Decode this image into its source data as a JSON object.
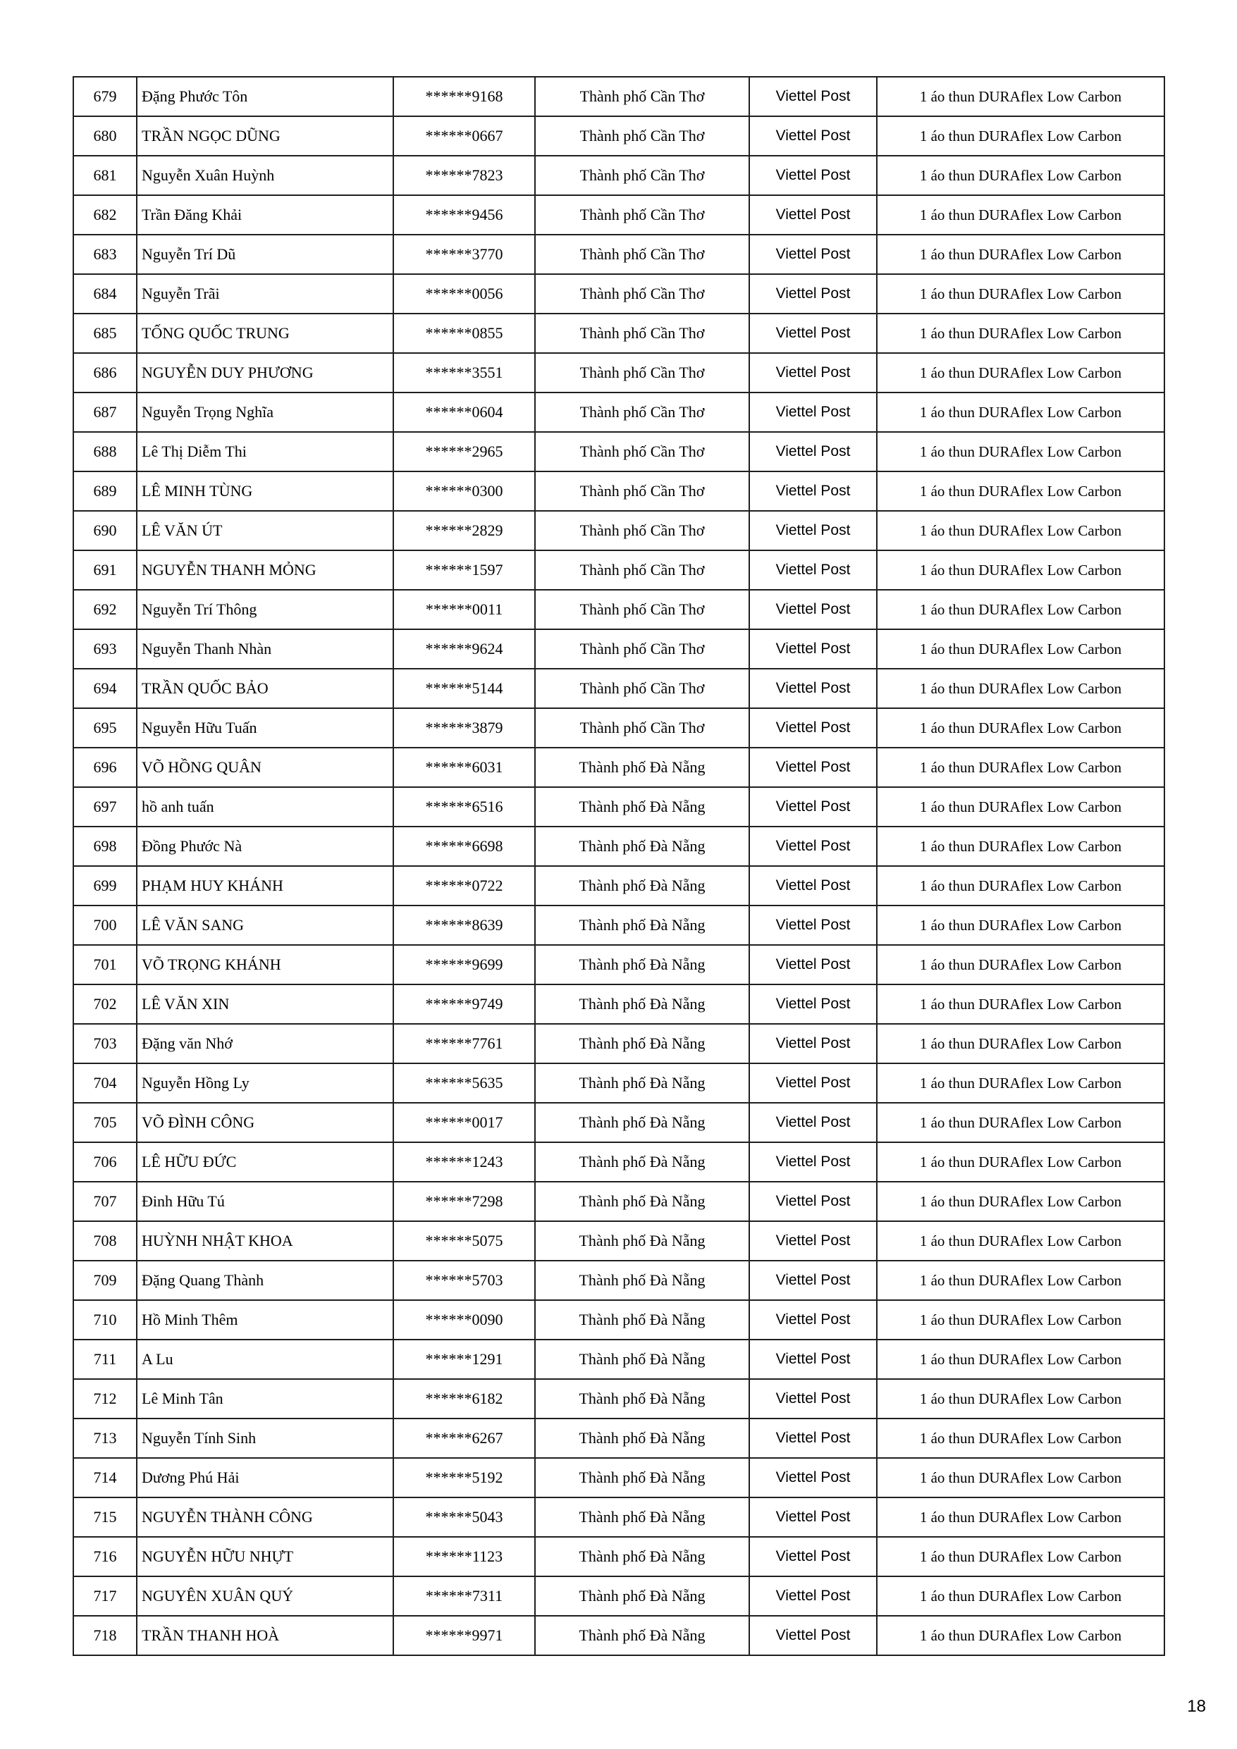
{
  "page": {
    "number": "18"
  },
  "table": {
    "columns": [
      "index",
      "name",
      "phone",
      "city",
      "carrier",
      "prize"
    ],
    "rows": [
      {
        "index": "679",
        "name": "Đặng Phước Tôn",
        "phone": "******9168",
        "city": "Thành phố Cần Thơ",
        "carrier": "Viettel Post",
        "prize": "1 áo thun DURAflex Low Carbon"
      },
      {
        "index": "680",
        "name": "TRẦN NGỌC DŨNG",
        "phone": "******0667",
        "city": "Thành phố Cần Thơ",
        "carrier": "Viettel Post",
        "prize": "1 áo thun DURAflex Low Carbon"
      },
      {
        "index": "681",
        "name": "Nguyễn Xuân Huỳnh",
        "phone": "******7823",
        "city": "Thành phố Cần Thơ",
        "carrier": "Viettel Post",
        "prize": "1 áo thun DURAflex Low Carbon"
      },
      {
        "index": "682",
        "name": "Trần Đăng Khải",
        "phone": "******9456",
        "city": "Thành phố Cần Thơ",
        "carrier": "Viettel Post",
        "prize": "1 áo thun DURAflex Low Carbon"
      },
      {
        "index": "683",
        "name": "Nguyễn Trí Dũ",
        "phone": "******3770",
        "city": "Thành phố Cần Thơ",
        "carrier": "Viettel Post",
        "prize": "1 áo thun DURAflex Low Carbon"
      },
      {
        "index": "684",
        "name": "Nguyễn Trãi",
        "phone": "******0056",
        "city": "Thành phố Cần Thơ",
        "carrier": "Viettel Post",
        "prize": "1 áo thun DURAflex Low Carbon"
      },
      {
        "index": "685",
        "name": "TỐNG QUỐC TRUNG",
        "phone": "******0855",
        "city": "Thành phố Cần Thơ",
        "carrier": "Viettel Post",
        "prize": "1 áo thun DURAflex Low Carbon"
      },
      {
        "index": "686",
        "name": "NGUYỄN DUY PHƯƠNG",
        "phone": "******3551",
        "city": "Thành phố Cần Thơ",
        "carrier": "Viettel Post",
        "prize": "1 áo thun DURAflex Low Carbon"
      },
      {
        "index": "687",
        "name": "Nguyễn Trọng Nghĩa",
        "phone": "******0604",
        "city": "Thành phố Cần Thơ",
        "carrier": "Viettel Post",
        "prize": "1 áo thun DURAflex Low Carbon"
      },
      {
        "index": "688",
        "name": "Lê Thị Diễm Thi",
        "phone": "******2965",
        "city": "Thành phố Cần Thơ",
        "carrier": "Viettel Post",
        "prize": "1 áo thun DURAflex Low Carbon"
      },
      {
        "index": "689",
        "name": "LÊ MINH TÙNG",
        "phone": "******0300",
        "city": "Thành phố Cần Thơ",
        "carrier": "Viettel Post",
        "prize": "1 áo thun DURAflex Low Carbon"
      },
      {
        "index": "690",
        "name": "LÊ VĂN ÚT",
        "phone": "******2829",
        "city": "Thành phố Cần Thơ",
        "carrier": "Viettel Post",
        "prize": "1 áo thun DURAflex Low Carbon"
      },
      {
        "index": "691",
        "name": "NGUYỄN THANH MỎNG",
        "phone": "******1597",
        "city": "Thành phố Cần Thơ",
        "carrier": "Viettel Post",
        "prize": "1 áo thun DURAflex Low Carbon"
      },
      {
        "index": "692",
        "name": "Nguyễn Trí Thông",
        "phone": "******0011",
        "city": "Thành phố Cần Thơ",
        "carrier": "Viettel Post",
        "prize": "1 áo thun DURAflex Low Carbon"
      },
      {
        "index": "693",
        "name": "Nguyễn Thanh Nhàn",
        "phone": "******9624",
        "city": "Thành phố Cần Thơ",
        "carrier": "Viettel Post",
        "prize": "1 áo thun DURAflex Low Carbon"
      },
      {
        "index": "694",
        "name": "TRẦN QUỐC BẢO",
        "phone": "******5144",
        "city": "Thành phố Cần Thơ",
        "carrier": "Viettel Post",
        "prize": "1 áo thun DURAflex Low Carbon"
      },
      {
        "index": "695",
        "name": "Nguyễn Hữu Tuấn",
        "phone": "******3879",
        "city": "Thành phố Cần Thơ",
        "carrier": "Viettel Post",
        "prize": "1 áo thun DURAflex Low Carbon"
      },
      {
        "index": "696",
        "name": "VÕ HỒNG QUÂN",
        "phone": "******6031",
        "city": "Thành phố Đà Nẵng",
        "carrier": "Viettel Post",
        "prize": "1 áo thun DURAflex Low Carbon"
      },
      {
        "index": "697",
        "name": "hồ anh tuấn",
        "phone": "******6516",
        "city": "Thành phố Đà Nẵng",
        "carrier": "Viettel Post",
        "prize": "1 áo thun DURAflex Low Carbon"
      },
      {
        "index": "698",
        "name": "Đồng Phước Nà",
        "phone": "******6698",
        "city": "Thành phố Đà Nẵng",
        "carrier": "Viettel Post",
        "prize": "1 áo thun DURAflex Low Carbon"
      },
      {
        "index": "699",
        "name": "PHẠM HUY KHÁNH",
        "phone": "******0722",
        "city": "Thành phố Đà Nẵng",
        "carrier": "Viettel Post",
        "prize": "1 áo thun DURAflex Low Carbon"
      },
      {
        "index": "700",
        "name": "LÊ VĂN SANG",
        "phone": "******8639",
        "city": "Thành phố Đà Nẵng",
        "carrier": "Viettel Post",
        "prize": "1 áo thun DURAflex Low Carbon"
      },
      {
        "index": "701",
        "name": "VÕ TRỌNG KHÁNH",
        "phone": "******9699",
        "city": "Thành phố Đà Nẵng",
        "carrier": "Viettel Post",
        "prize": "1 áo thun DURAflex Low Carbon"
      },
      {
        "index": "702",
        "name": "LÊ VĂN XIN",
        "phone": "******9749",
        "city": "Thành phố Đà Nẵng",
        "carrier": "Viettel Post",
        "prize": "1 áo thun DURAflex Low Carbon"
      },
      {
        "index": "703",
        "name": "Đặng văn Nhớ",
        "phone": "******7761",
        "city": "Thành phố Đà Nẵng",
        "carrier": "Viettel Post",
        "prize": "1 áo thun DURAflex Low Carbon"
      },
      {
        "index": "704",
        "name": "Nguyễn Hồng Ly",
        "phone": "******5635",
        "city": "Thành phố Đà Nẵng",
        "carrier": "Viettel Post",
        "prize": "1 áo thun DURAflex Low Carbon"
      },
      {
        "index": "705",
        "name": "VÕ ĐÌNH CÔNG",
        "phone": "******0017",
        "city": "Thành phố Đà Nẵng",
        "carrier": "Viettel Post",
        "prize": "1 áo thun DURAflex Low Carbon"
      },
      {
        "index": "706",
        "name": "LÊ HỮU ĐỨC",
        "phone": "******1243",
        "city": "Thành phố Đà Nẵng",
        "carrier": "Viettel Post",
        "prize": "1 áo thun DURAflex Low Carbon"
      },
      {
        "index": "707",
        "name": "Đinh Hữu Tú",
        "phone": "******7298",
        "city": "Thành phố Đà Nẵng",
        "carrier": "Viettel Post",
        "prize": "1 áo thun DURAflex Low Carbon"
      },
      {
        "index": "708",
        "name": "HUỲNH NHẬT KHOA",
        "phone": "******5075",
        "city": "Thành phố Đà Nẵng",
        "carrier": "Viettel Post",
        "prize": "1 áo thun DURAflex Low Carbon"
      },
      {
        "index": "709",
        "name": "Đặng Quang Thành",
        "phone": "******5703",
        "city": "Thành phố Đà Nẵng",
        "carrier": "Viettel Post",
        "prize": "1 áo thun DURAflex Low Carbon"
      },
      {
        "index": "710",
        "name": "Hồ Minh Thêm",
        "phone": "******0090",
        "city": "Thành phố Đà Nẵng",
        "carrier": "Viettel Post",
        "prize": "1 áo thun DURAflex Low Carbon"
      },
      {
        "index": "711",
        "name": "A Lu",
        "phone": "******1291",
        "city": "Thành phố Đà Nẵng",
        "carrier": "Viettel Post",
        "prize": "1 áo thun DURAflex Low Carbon"
      },
      {
        "index": "712",
        "name": "Lê Minh Tân",
        "phone": "******6182",
        "city": "Thành phố Đà Nẵng",
        "carrier": "Viettel Post",
        "prize": "1 áo thun DURAflex Low Carbon"
      },
      {
        "index": "713",
        "name": "Nguyễn Tính Sinh",
        "phone": "******6267",
        "city": "Thành phố Đà Nẵng",
        "carrier": "Viettel Post",
        "prize": "1 áo thun DURAflex Low Carbon"
      },
      {
        "index": "714",
        "name": "Dương Phú Hải",
        "phone": "******5192",
        "city": "Thành phố Đà Nẵng",
        "carrier": "Viettel Post",
        "prize": "1 áo thun DURAflex Low Carbon"
      },
      {
        "index": "715",
        "name": "NGUYỄN THÀNH CÔNG",
        "phone": "******5043",
        "city": "Thành phố Đà Nẵng",
        "carrier": "Viettel Post",
        "prize": "1 áo thun DURAflex Low Carbon"
      },
      {
        "index": "716",
        "name": "NGUYỄN HỮU NHỰT",
        "phone": "******1123",
        "city": "Thành phố Đà Nẵng",
        "carrier": "Viettel Post",
        "prize": "1 áo thun DURAflex Low Carbon"
      },
      {
        "index": "717",
        "name": "NGUYÊN XUÂN QUÝ",
        "phone": "******7311",
        "city": "Thành phố Đà Nẵng",
        "carrier": "Viettel Post",
        "prize": "1 áo thun DURAflex Low Carbon"
      },
      {
        "index": "718",
        "name": "TRẦN THANH HOÀ",
        "phone": "******9971",
        "city": "Thành phố Đà Nẵng",
        "carrier": "Viettel Post",
        "prize": "1 áo thun DURAflex Low Carbon"
      }
    ]
  }
}
